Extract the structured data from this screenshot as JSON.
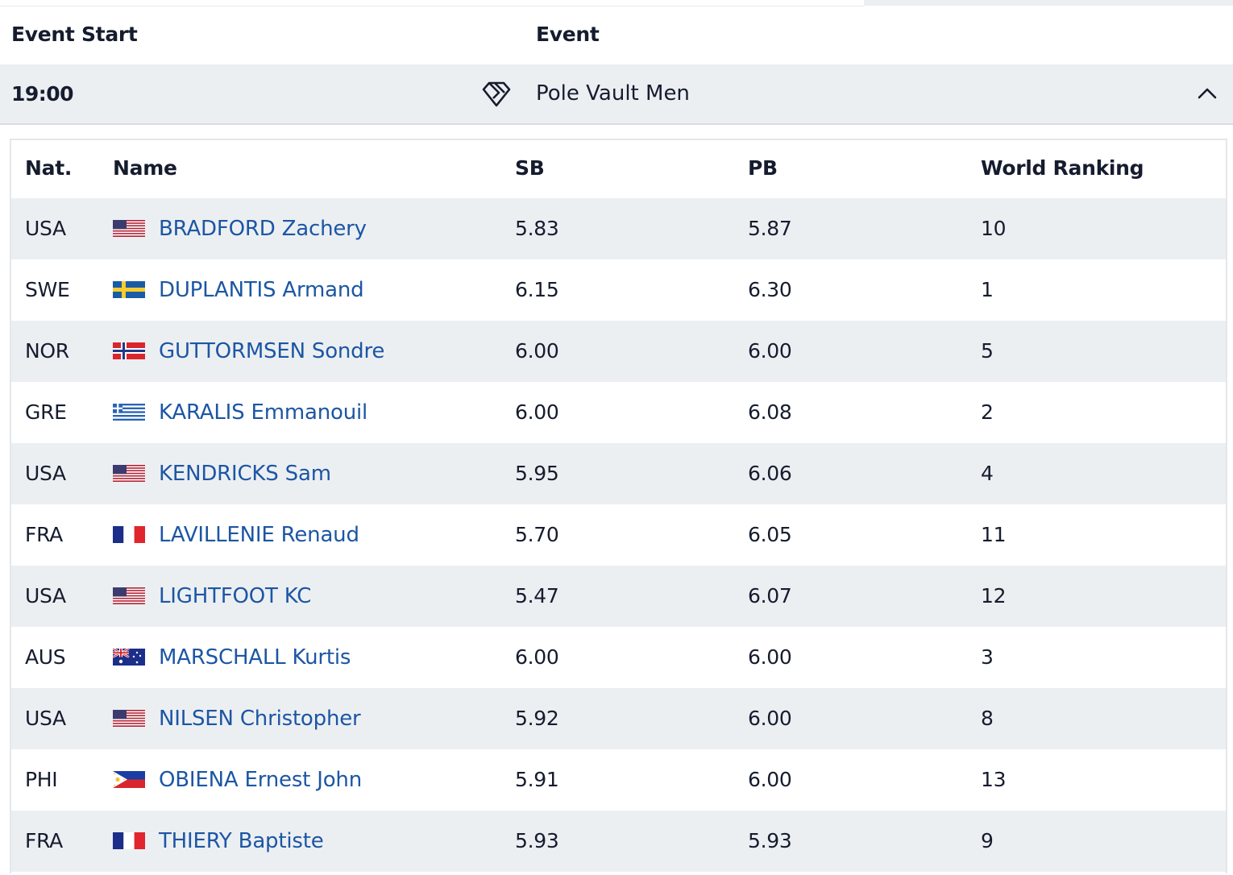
{
  "header": {
    "event_start_label": "Event Start",
    "event_label": "Event"
  },
  "event": {
    "time": "19:00",
    "name": "Pole Vault Men",
    "icon": "diamond-league-icon",
    "toggle_icon": "chevron-up-icon"
  },
  "table": {
    "columns": {
      "nat": "Nat.",
      "name": "Name",
      "sb": "SB",
      "pb": "PB",
      "world_ranking": "World Ranking"
    },
    "rows": [
      {
        "nat": "USA",
        "name": "BRADFORD Zachery",
        "sb": "5.83",
        "pb": "5.87",
        "world_ranking": "10"
      },
      {
        "nat": "SWE",
        "name": "DUPLANTIS Armand",
        "sb": "6.15",
        "pb": "6.30",
        "world_ranking": "1"
      },
      {
        "nat": "NOR",
        "name": "GUTTORMSEN Sondre",
        "sb": "6.00",
        "pb": "6.00",
        "world_ranking": "5"
      },
      {
        "nat": "GRE",
        "name": "KARALIS Emmanouil",
        "sb": "6.00",
        "pb": "6.08",
        "world_ranking": "2"
      },
      {
        "nat": "USA",
        "name": "KENDRICKS Sam",
        "sb": "5.95",
        "pb": "6.06",
        "world_ranking": "4"
      },
      {
        "nat": "FRA",
        "name": "LAVILLENIE Renaud",
        "sb": "5.70",
        "pb": "6.05",
        "world_ranking": "11"
      },
      {
        "nat": "USA",
        "name": "LIGHTFOOT KC",
        "sb": "5.47",
        "pb": "6.07",
        "world_ranking": "12"
      },
      {
        "nat": "AUS",
        "name": "MARSCHALL Kurtis",
        "sb": "6.00",
        "pb": "6.00",
        "world_ranking": "3"
      },
      {
        "nat": "USA",
        "name": "NILSEN Christopher",
        "sb": "5.92",
        "pb": "6.00",
        "world_ranking": "8"
      },
      {
        "nat": "PHI",
        "name": "OBIENA Ernest John",
        "sb": "5.91",
        "pb": "6.00",
        "world_ranking": "13"
      },
      {
        "nat": "FRA",
        "name": "THIERY Baptiste",
        "sb": "5.93",
        "pb": "5.93",
        "world_ranking": "9"
      }
    ]
  },
  "colors": {
    "link": "#1c56a4",
    "text": "#161c2e",
    "row_alt": "#eceff2",
    "border": "#e4e7eb"
  }
}
